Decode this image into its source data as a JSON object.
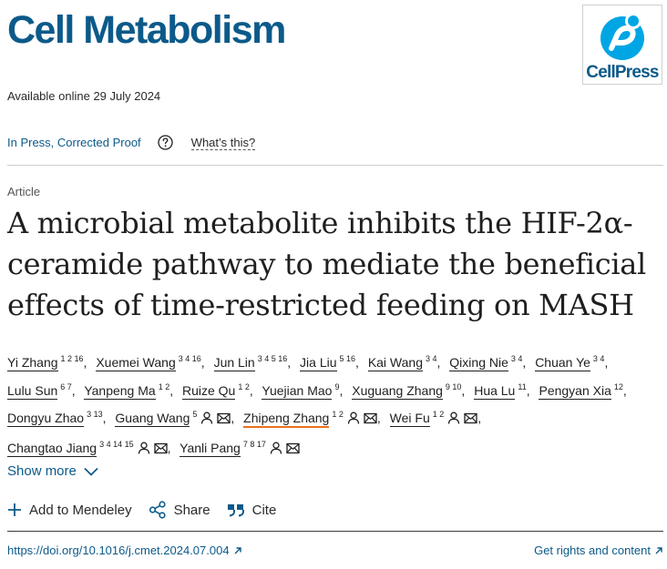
{
  "journal": {
    "title": "Cell Metabolism",
    "publisher_logo_text": "CellPress"
  },
  "available_online": "Available online 29 July 2024",
  "status": {
    "label": "In Press, Corrected Proof",
    "help_label": "What’s this?"
  },
  "article": {
    "type": "Article",
    "title": "A microbial metabolite inhibits the HIF-2α-ceramide pathway to mediate the beneficial effects of time-restricted feeding on MASH"
  },
  "authors": [
    {
      "name": "Yi Zhang",
      "affil": "1 2 16",
      "corresponding": false
    },
    {
      "name": "Xuemei Wang",
      "affil": "3 4 16",
      "corresponding": false
    },
    {
      "name": "Jun Lin",
      "affil": "3 4 5 16",
      "corresponding": false
    },
    {
      "name": "Jia Liu",
      "affil": "5 16",
      "corresponding": false
    },
    {
      "name": "Kai Wang",
      "affil": "3 4",
      "corresponding": false
    },
    {
      "name": "Qixing Nie",
      "affil": "3 4",
      "corresponding": false
    },
    {
      "name": "Chuan Ye",
      "affil": "3 4",
      "corresponding": false
    },
    {
      "name": "Lulu Sun",
      "affil": "6 7",
      "corresponding": false
    },
    {
      "name": "Yanpeng Ma",
      "affil": "1 2",
      "corresponding": false
    },
    {
      "name": "Ruize Qu",
      "affil": "1 2",
      "corresponding": false
    },
    {
      "name": "Yuejian Mao",
      "affil": "9",
      "corresponding": false
    },
    {
      "name": "Xuguang Zhang",
      "affil": "9 10",
      "corresponding": false
    },
    {
      "name": "Hua Lu",
      "affil": "11",
      "corresponding": false
    },
    {
      "name": "Pengyan Xia",
      "affil": "12",
      "corresponding": false
    },
    {
      "name": "Dongyu Zhao",
      "affil": "3 13",
      "corresponding": false
    },
    {
      "name": "Guang Wang",
      "affil": "5",
      "corresponding": true
    },
    {
      "name": "Zhipeng Zhang",
      "affil": "1 2",
      "corresponding": true,
      "highlight": true
    },
    {
      "name": "Wei Fu",
      "affil": "1 2",
      "corresponding": true
    },
    {
      "name": "Changtao Jiang",
      "affil": "3 4 14 15",
      "corresponding": true
    },
    {
      "name": "Yanli Pang",
      "affil": "7 8 17",
      "corresponding": true
    }
  ],
  "author_icons": [
    "person-icon",
    "email-icon"
  ],
  "show_more": "Show more",
  "actions": {
    "mendeley": "Add to Mendeley",
    "share": "Share",
    "cite": "Cite"
  },
  "footer": {
    "doi": "https://doi.org/10.1016/j.cmet.2024.07.004",
    "rights": "Get rights and content"
  },
  "colors": {
    "brand": "#0c5a8a",
    "logo_blue": "#00a6e3",
    "highlight": "#e9711c"
  }
}
